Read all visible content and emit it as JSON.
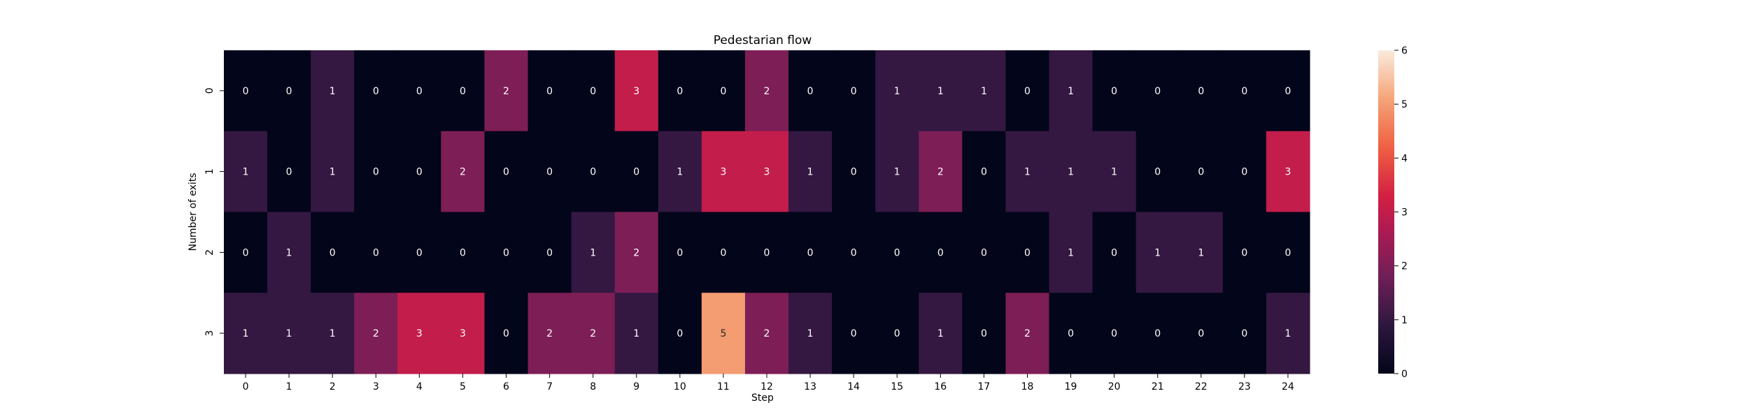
{
  "chart_data": {
    "type": "heatmap",
    "title": "Pedestarian flow",
    "xlabel": "Step",
    "ylabel": "Number of exits",
    "x_categories": [
      "0",
      "1",
      "2",
      "3",
      "4",
      "5",
      "6",
      "7",
      "8",
      "9",
      "10",
      "11",
      "12",
      "13",
      "14",
      "15",
      "16",
      "17",
      "18",
      "19",
      "20",
      "21",
      "22",
      "23",
      "24"
    ],
    "y_categories": [
      "0",
      "1",
      "2",
      "3"
    ],
    "values": [
      [
        0,
        0,
        1,
        0,
        0,
        0,
        2,
        0,
        0,
        3,
        0,
        0,
        2,
        0,
        0,
        1,
        1,
        1,
        0,
        1,
        0,
        0,
        0,
        0,
        0
      ],
      [
        1,
        0,
        1,
        0,
        0,
        2,
        0,
        0,
        0,
        0,
        1,
        3,
        3,
        1,
        0,
        1,
        2,
        0,
        1,
        1,
        1,
        0,
        0,
        0,
        3
      ],
      [
        0,
        1,
        0,
        0,
        0,
        0,
        0,
        0,
        1,
        2,
        0,
        0,
        0,
        0,
        0,
        0,
        0,
        0,
        0,
        1,
        0,
        1,
        1,
        0,
        0
      ],
      [
        1,
        1,
        1,
        2,
        3,
        3,
        0,
        2,
        2,
        1,
        0,
        5,
        2,
        1,
        0,
        0,
        1,
        0,
        2,
        0,
        0,
        0,
        0,
        0,
        1
      ]
    ],
    "colorbar": {
      "min": 0,
      "max": 6,
      "ticks": [
        "0",
        "1",
        "2",
        "3",
        "4",
        "5",
        "6"
      ]
    },
    "colormap": "rocket",
    "annotations": true,
    "grid": false
  }
}
